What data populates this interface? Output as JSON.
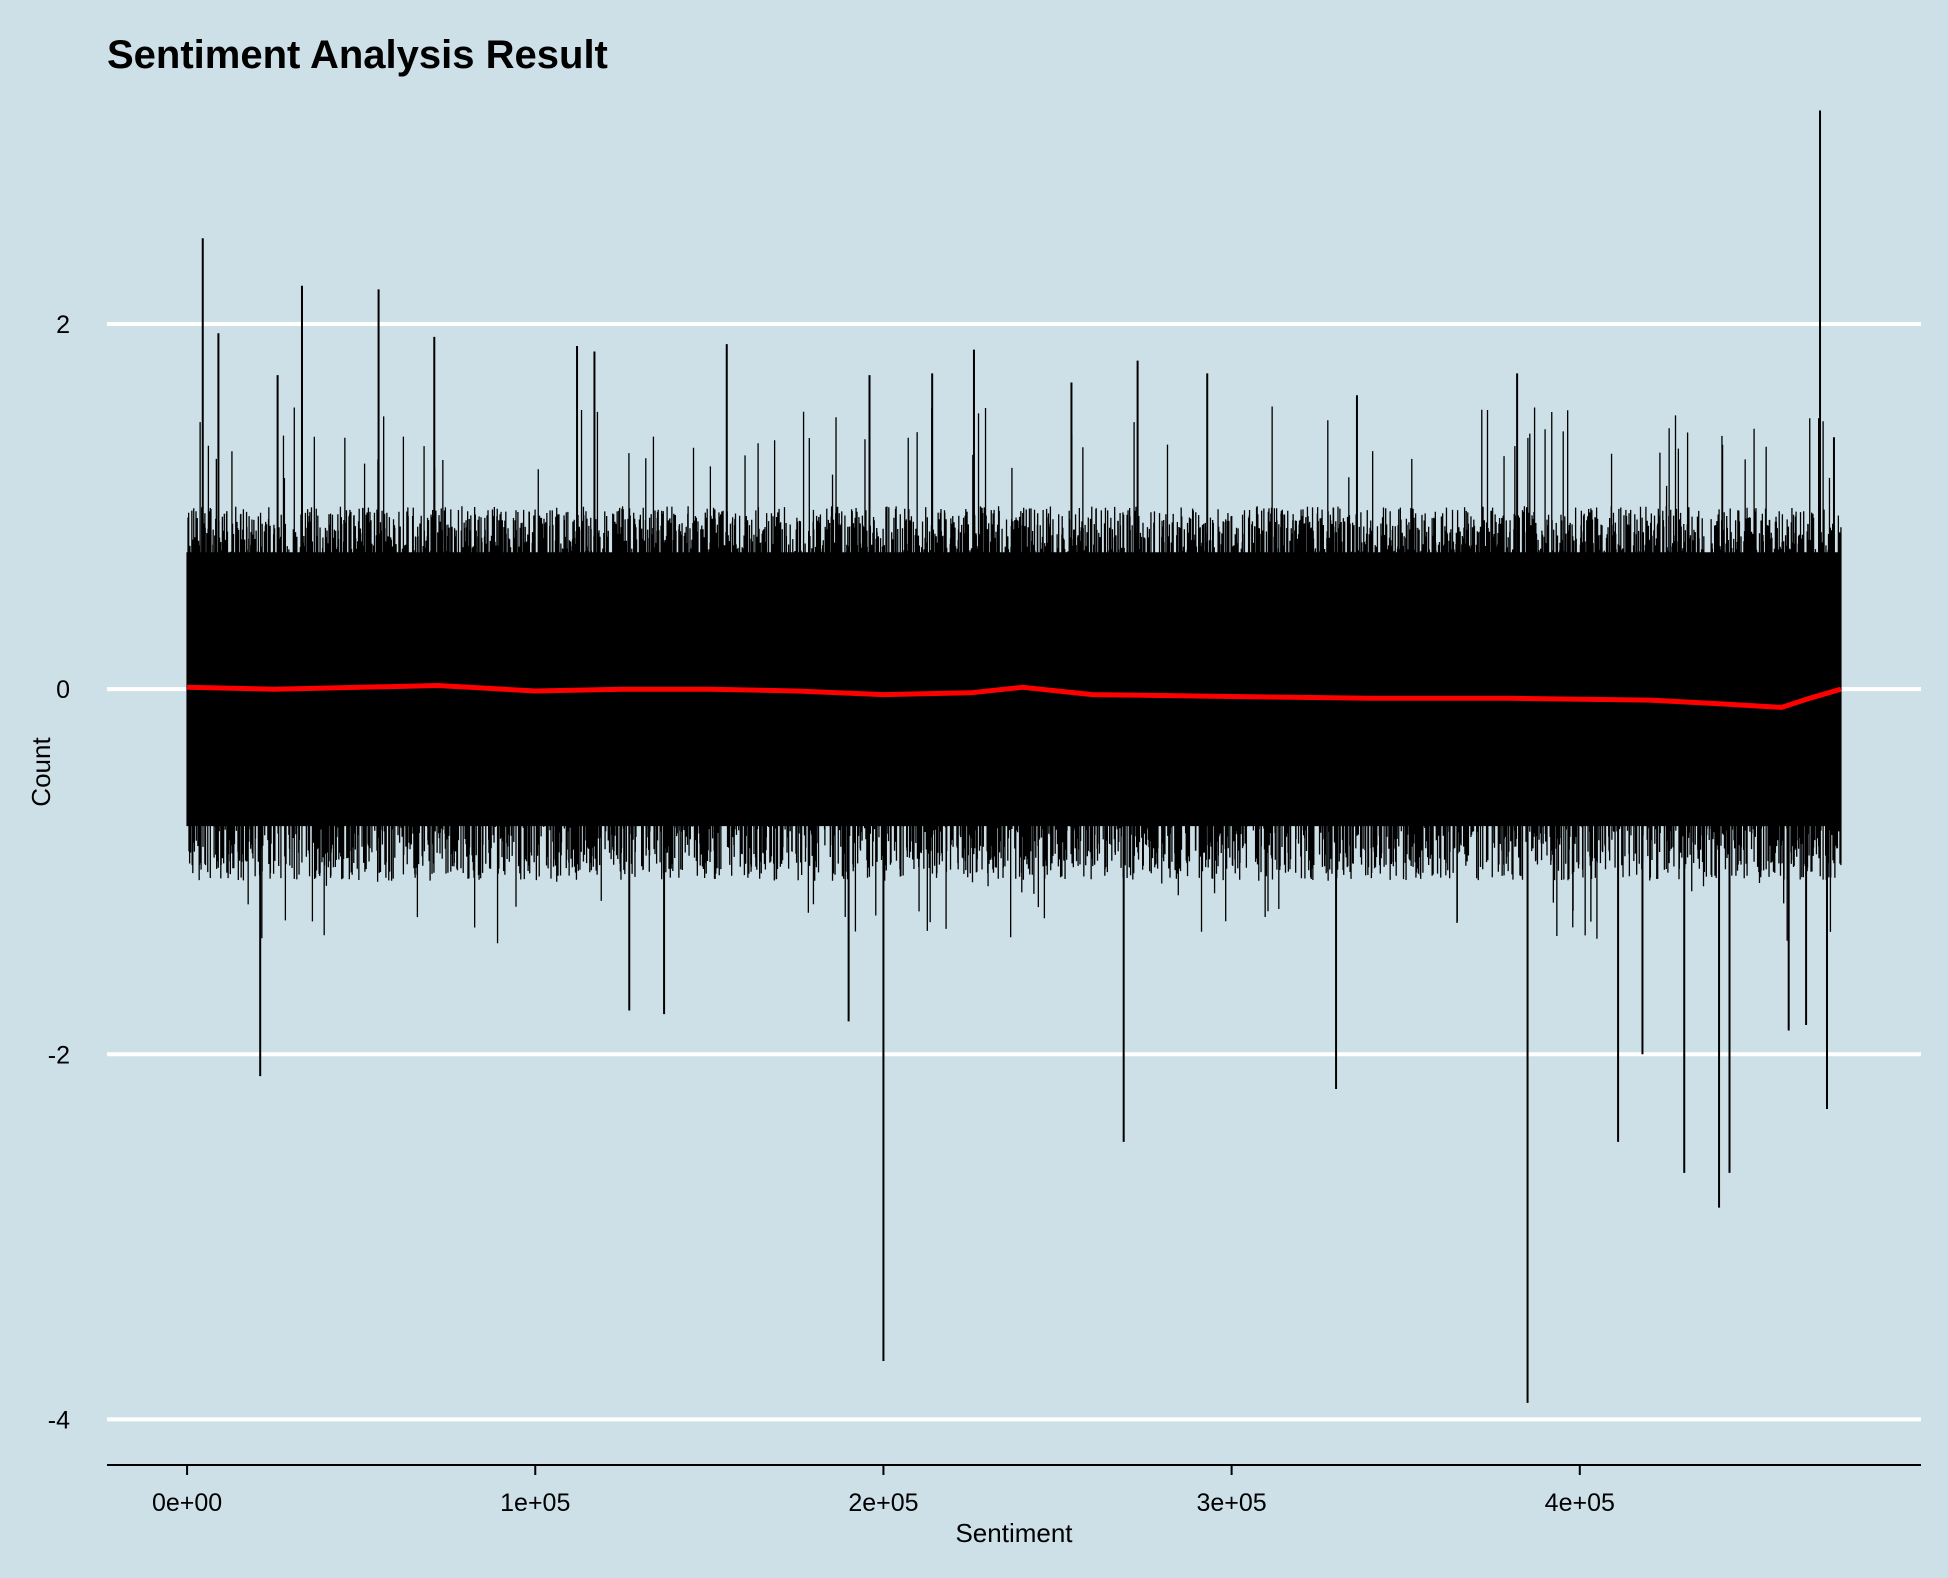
{
  "chart_data": {
    "type": "line",
    "title": "Sentiment Analysis Result",
    "xlabel": "Sentiment",
    "ylabel": "Count",
    "xlim": [
      -23000,
      498000
    ],
    "ylim": [
      -4.25,
      3.2
    ],
    "x_ticks": [
      {
        "value": 0,
        "label": "0e+00"
      },
      {
        "value": 100000,
        "label": "1e+05"
      },
      {
        "value": 200000,
        "label": "2e+05"
      },
      {
        "value": 300000,
        "label": "3e+05"
      },
      {
        "value": 400000,
        "label": "4e+05"
      }
    ],
    "y_ticks": [
      {
        "value": 2,
        "label": "2"
      },
      {
        "value": 0,
        "label": "0"
      },
      {
        "value": -2,
        "label": "-2"
      },
      {
        "value": -4,
        "label": "-4"
      }
    ],
    "grid": "horizontal",
    "legend": "none",
    "n_points_approx": 475000,
    "x_max": 475000,
    "series": [
      {
        "kind": "raw sentiment values (dense band)",
        "color": "#000000",
        "typical_band": [
          -0.75,
          0.75
        ],
        "frequent_range": [
          -1,
          1
        ],
        "spikes": [
          {
            "x": 4500,
            "y": 2.47
          },
          {
            "x": 9000,
            "y": 1.95
          },
          {
            "x": 21000,
            "y": -2.12
          },
          {
            "x": 26000,
            "y": 1.72
          },
          {
            "x": 33000,
            "y": 2.21
          },
          {
            "x": 55000,
            "y": 2.19
          },
          {
            "x": 71000,
            "y": 1.93
          },
          {
            "x": 112000,
            "y": 1.88
          },
          {
            "x": 117000,
            "y": 1.85
          },
          {
            "x": 127000,
            "y": -1.76
          },
          {
            "x": 137000,
            "y": -1.78
          },
          {
            "x": 155000,
            "y": 1.89
          },
          {
            "x": 190000,
            "y": -1.82
          },
          {
            "x": 196000,
            "y": 1.72
          },
          {
            "x": 200000,
            "y": -3.68
          },
          {
            "x": 214000,
            "y": 1.73
          },
          {
            "x": 226000,
            "y": 1.86
          },
          {
            "x": 254000,
            "y": 1.68
          },
          {
            "x": 269000,
            "y": -2.48
          },
          {
            "x": 273000,
            "y": 1.8
          },
          {
            "x": 293000,
            "y": 1.73
          },
          {
            "x": 330000,
            "y": -2.19
          },
          {
            "x": 336000,
            "y": 1.61
          },
          {
            "x": 382000,
            "y": 1.73
          },
          {
            "x": 385000,
            "y": -3.91
          },
          {
            "x": 411000,
            "y": -2.48
          },
          {
            "x": 418000,
            "y": -2.0
          },
          {
            "x": 430000,
            "y": -2.65
          },
          {
            "x": 440000,
            "y": -2.84
          },
          {
            "x": 443000,
            "y": -2.65
          },
          {
            "x": 460000,
            "y": -1.87
          },
          {
            "x": 465000,
            "y": -1.84
          },
          {
            "x": 469000,
            "y": 3.17
          },
          {
            "x": 471000,
            "y": -2.3
          },
          {
            "x": 473000,
            "y": 1.38
          }
        ]
      },
      {
        "kind": "smoothed trend",
        "color": "#ff0000",
        "points": [
          {
            "x": 0,
            "y": 0.01
          },
          {
            "x": 25000,
            "y": 0.0
          },
          {
            "x": 50000,
            "y": 0.01
          },
          {
            "x": 72000,
            "y": 0.02
          },
          {
            "x": 100000,
            "y": -0.01
          },
          {
            "x": 125000,
            "y": 0.0
          },
          {
            "x": 150000,
            "y": 0.0
          },
          {
            "x": 175000,
            "y": -0.01
          },
          {
            "x": 200000,
            "y": -0.03
          },
          {
            "x": 225000,
            "y": -0.02
          },
          {
            "x": 240000,
            "y": 0.01
          },
          {
            "x": 260000,
            "y": -0.03
          },
          {
            "x": 300000,
            "y": -0.04
          },
          {
            "x": 340000,
            "y": -0.05
          },
          {
            "x": 380000,
            "y": -0.05
          },
          {
            "x": 420000,
            "y": -0.06
          },
          {
            "x": 440000,
            "y": -0.08
          },
          {
            "x": 458000,
            "y": -0.1
          },
          {
            "x": 466000,
            "y": -0.05
          },
          {
            "x": 475000,
            "y": 0.0
          }
        ]
      }
    ]
  }
}
